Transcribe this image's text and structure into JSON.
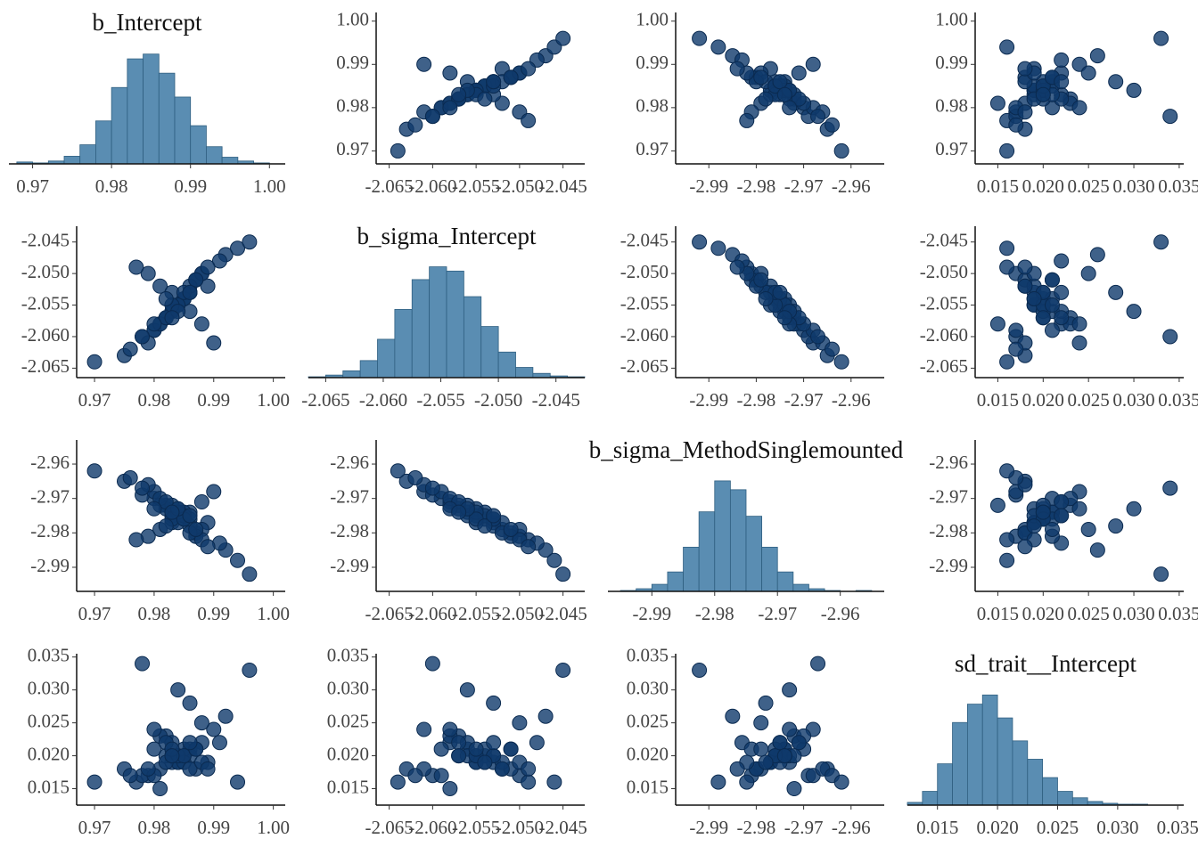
{
  "chart_data": {
    "type": "pairs",
    "point_color": "#0f3a6b",
    "bar_color": "#5a8db2",
    "variables": [
      {
        "name": "b_Intercept",
        "lim": [
          0.967,
          1.002
        ],
        "ticks": [
          0.97,
          0.98,
          0.99,
          {
            "value": 1,
            "label": "1.00"
          }
        ],
        "samples": [
          0.984,
          0.981,
          0.988,
          0.979,
          0.986,
          0.983,
          0.99,
          0.977,
          0.985,
          0.982,
          0.987,
          0.98,
          0.984,
          0.992,
          0.978,
          0.986,
          0.983,
          0.989,
          0.981,
          0.985,
          0.975,
          0.988,
          0.982,
          0.984,
          0.991,
          0.98,
          0.986,
          0.983,
          0.979,
          0.987,
          0.985,
          0.981,
          0.994,
          0.984,
          0.978,
          0.986,
          0.982,
          0.988,
          0.983,
          0.976,
          0.985,
          0.98,
          0.989,
          0.984,
          0.982,
          0.987,
          0.97,
          0.986,
          0.983,
          0.996
        ],
        "hist": {
          "bins": [
            0.968,
            0.97,
            0.972,
            0.974,
            0.976,
            0.978,
            0.98,
            0.982,
            0.984,
            0.986,
            0.988,
            0.99,
            0.992,
            0.994,
            0.996,
            0.998,
            1.0
          ],
          "counts": [
            2,
            1,
            3,
            8,
            20,
            45,
            80,
            110,
            115,
            95,
            70,
            40,
            18,
            7,
            3,
            1
          ],
          "ylim": [
            0,
            125
          ]
        }
      },
      {
        "name": "b_sigma_Intercept",
        "lim": [
          -2.0665,
          -2.0425
        ],
        "ticks": [
          -2.065,
          {
            "value": -2.06,
            "label": "-2.060"
          },
          -2.055,
          {
            "value": -2.05,
            "label": "-2.050"
          },
          -2.045
        ],
        "samples": [
          -2.055,
          -2.052,
          -2.058,
          -2.05,
          -2.056,
          -2.053,
          -2.061,
          -2.049,
          -2.054,
          -2.057,
          -2.051,
          -2.059,
          -2.055,
          -2.047,
          -2.06,
          -2.053,
          -2.056,
          -2.052,
          -2.058,
          -2.054,
          -2.063,
          -2.05,
          -2.057,
          -2.055,
          -2.048,
          -2.059,
          -2.053,
          -2.056,
          -2.061,
          -2.051,
          -2.054,
          -2.058,
          -2.046,
          -2.055,
          -2.06,
          -2.052,
          -2.057,
          -2.05,
          -2.055,
          -2.062,
          -2.053,
          -2.058,
          -2.049,
          -2.056,
          -2.054,
          -2.051,
          -2.064,
          -2.053,
          -2.057,
          -2.045
        ],
        "hist": {
          "bins": [
            -2.0665,
            -2.065,
            -2.0635,
            -2.062,
            -2.0605,
            -2.059,
            -2.0575,
            -2.056,
            -2.0545,
            -2.053,
            -2.0515,
            -2.05,
            -2.0485,
            -2.047,
            -2.0455,
            -2.044,
            -2.0425
          ],
          "counts": [
            1,
            3,
            8,
            20,
            45,
            80,
            115,
            130,
            125,
            95,
            60,
            30,
            12,
            5,
            2,
            1
          ],
          "ylim": [
            0,
            140
          ]
        }
      },
      {
        "name": "b_sigma_MethodSinglemounted",
        "lim": [
          -2.997,
          -2.953
        ],
        "ticks": [
          -2.99,
          -2.98,
          -2.97,
          -2.96
        ],
        "samples": [
          -2.975,
          -2.979,
          -2.971,
          -2.981,
          -2.974,
          -2.977,
          -2.968,
          -2.982,
          -2.976,
          -2.972,
          -2.98,
          -2.97,
          -2.973,
          -2.985,
          -2.969,
          -2.976,
          -2.975,
          -2.977,
          -2.972,
          -2.974,
          -2.965,
          -2.979,
          -2.973,
          -2.977,
          -2.983,
          -2.968,
          -2.978,
          -2.972,
          -2.966,
          -2.981,
          -2.975,
          -2.97,
          -2.988,
          -2.974,
          -2.967,
          -2.98,
          -2.971,
          -2.982,
          -2.976,
          -2.964,
          -2.976,
          -2.973,
          -2.984,
          -2.973,
          -2.978,
          -2.979,
          -2.962,
          -2.975,
          -2.974,
          -2.992
        ],
        "hist": {
          "bins": [
            -2.995,
            -2.9925,
            -2.99,
            -2.9875,
            -2.985,
            -2.9825,
            -2.98,
            -2.9775,
            -2.975,
            -2.9725,
            -2.97,
            -2.9675,
            -2.965,
            -2.9625,
            -2.96,
            -2.9575,
            -2.955
          ],
          "counts": [
            1,
            3,
            8,
            22,
            50,
            90,
            125,
            115,
            85,
            50,
            22,
            8,
            3,
            1,
            0,
            1
          ],
          "ylim": [
            0,
            135
          ]
        }
      },
      {
        "name": "sd_trait__Intercept",
        "lim": [
          0.0125,
          0.0355
        ],
        "ticks": [
          0.015,
          {
            "value": 0.02,
            "label": "0.020"
          },
          0.025,
          {
            "value": 0.03,
            "label": "0.030"
          },
          0.035
        ],
        "samples": [
          0.02,
          0.018,
          0.022,
          0.017,
          0.021,
          0.019,
          0.024,
          0.016,
          0.02,
          0.023,
          0.018,
          0.021,
          0.019,
          0.026,
          0.017,
          0.02,
          0.022,
          0.019,
          0.015,
          0.021,
          0.018,
          0.025,
          0.02,
          0.019,
          0.022,
          0.017,
          0.028,
          0.02,
          0.018,
          0.021,
          0.019,
          0.023,
          0.016,
          0.02,
          0.034,
          0.018,
          0.022,
          0.019,
          0.021,
          0.017,
          0.02,
          0.024,
          0.018,
          0.03,
          0.019,
          0.021,
          0.016,
          0.022,
          0.02,
          0.033
        ],
        "hist": {
          "bins": [
            0.0125,
            0.01375,
            0.015,
            0.01625,
            0.0175,
            0.01875,
            0.02,
            0.02125,
            0.0225,
            0.02375,
            0.025,
            0.02625,
            0.0275,
            0.02875,
            0.03,
            0.03125,
            0.0325
          ],
          "counts": [
            3,
            15,
            45,
            90,
            110,
            120,
            95,
            70,
            50,
            30,
            15,
            8,
            4,
            2,
            1,
            1
          ],
          "ylim": [
            0,
            130
          ]
        }
      }
    ]
  }
}
